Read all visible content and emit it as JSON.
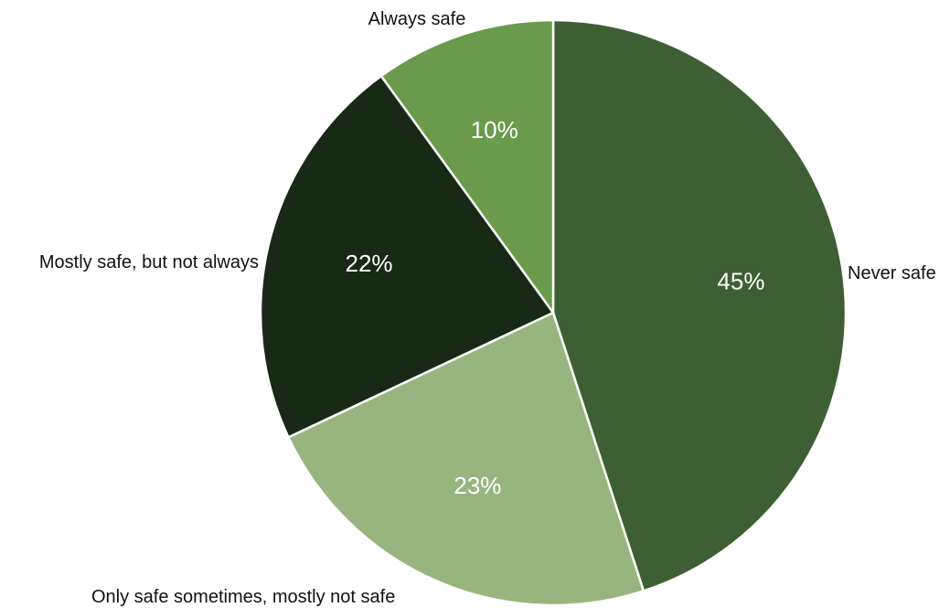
{
  "chart_data": {
    "type": "pie",
    "categories": [
      "Never safe",
      "Only safe sometimes, mostly not safe",
      "Mostly safe, but not always",
      "Always safe"
    ],
    "values": [
      45,
      23,
      22,
      10
    ],
    "value_labels": [
      "45%",
      "23%",
      "22%",
      "10%"
    ],
    "colors": [
      "#3e5f33",
      "#98b57f",
      "#182a15",
      "#6a9a4b"
    ],
    "start": "12 o'clock",
    "direction": "clockwise"
  }
}
